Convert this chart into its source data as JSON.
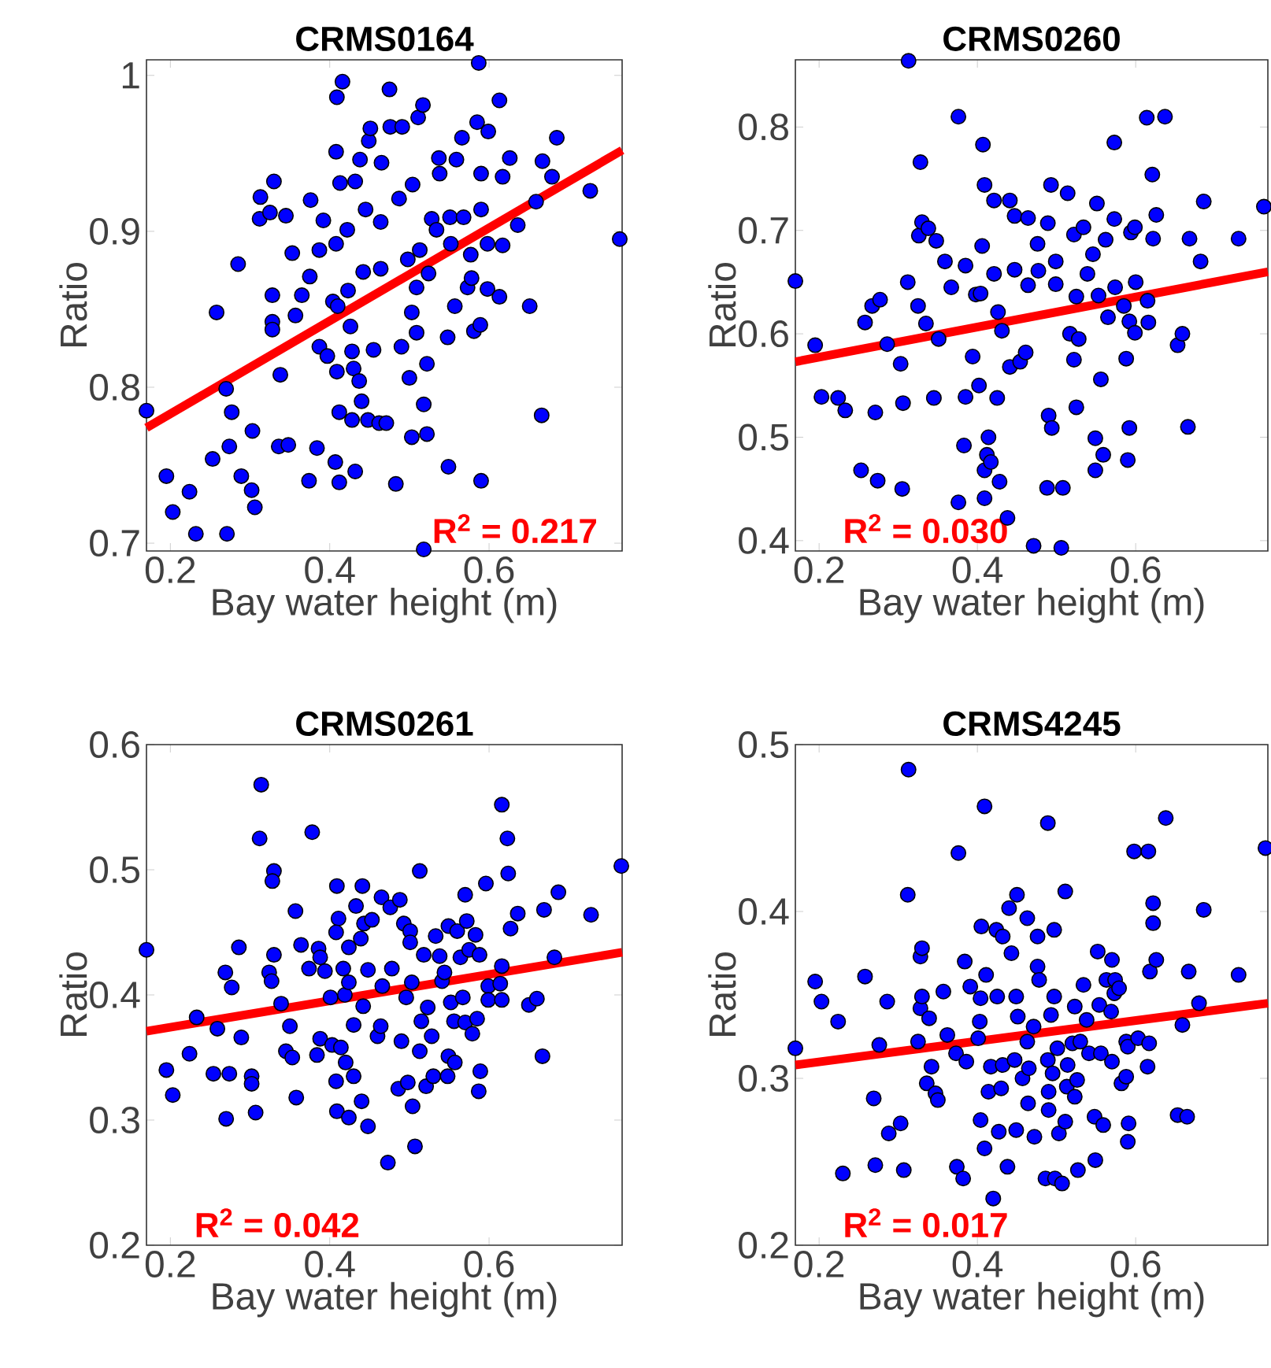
{
  "chart_data": [
    {
      "type": "scatter",
      "title": "CRMS0164",
      "xlabel": "Bay water height (m)",
      "ylabel": "Ratio",
      "xlim": [
        0.17,
        0.767
      ],
      "ylim": [
        0.695,
        1.01
      ],
      "xticks": [
        0.2,
        0.4,
        0.6
      ],
      "yticks": [
        0.7,
        0.8,
        0.9,
        1
      ],
      "annotations": [
        "R$^{2}$ = 0.217"
      ],
      "series": [
        {
          "marker": "circle",
          "color": "#0000ff",
          "x": [
            0.17,
            0.195,
            0.203,
            0.224,
            0.232,
            0.253,
            0.258,
            0.271,
            0.27,
            0.277,
            0.274,
            0.285,
            0.289,
            0.302,
            0.306,
            0.303,
            0.312,
            0.313,
            0.325,
            0.33,
            0.328,
            0.328,
            0.328,
            0.338,
            0.336,
            0.348,
            0.345,
            0.353,
            0.357,
            0.365,
            0.374,
            0.375,
            0.376,
            0.384,
            0.387,
            0.392,
            0.387,
            0.397,
            0.407,
            0.409,
            0.408,
            0.408,
            0.409,
            0.416,
            0.412,
            0.412,
            0.413,
            0.404,
            0.41,
            0.422,
            0.423,
            0.426,
            0.428,
            0.432,
            0.43,
            0.437,
            0.438,
            0.44,
            0.428,
            0.432,
            0.445,
            0.442,
            0.449,
            0.451,
            0.448,
            0.455,
            0.462,
            0.464,
            0.465,
            0.464,
            0.471,
            0.475,
            0.476,
            0.483,
            0.487,
            0.491,
            0.49,
            0.498,
            0.5,
            0.503,
            0.504,
            0.503,
            0.509,
            0.509,
            0.511,
            0.517,
            0.518,
            0.522,
            0.522,
            0.518,
            0.513,
            0.524,
            0.528,
            0.534,
            0.538,
            0.537,
            0.548,
            0.549,
            0.551,
            0.552,
            0.557,
            0.559,
            0.566,
            0.568,
            0.573,
            0.577,
            0.578,
            0.581,
            0.589,
            0.585,
            0.59,
            0.59,
            0.59,
            0.587,
            0.599,
            0.598,
            0.598,
            0.613,
            0.617,
            0.617,
            0.613,
            0.626,
            0.636,
            0.651,
            0.666,
            0.659,
            0.667,
            0.679,
            0.685,
            0.727,
            0.764
          ],
          "values": [
            0.785,
            0.743,
            0.72,
            0.733,
            0.706,
            0.754,
            0.848,
            0.706,
            0.799,
            0.784,
            0.762,
            0.879,
            0.743,
            0.734,
            0.723,
            0.772,
            0.908,
            0.922,
            0.912,
            0.932,
            0.859,
            0.842,
            0.837,
            0.808,
            0.762,
            0.763,
            0.91,
            0.886,
            0.846,
            0.859,
            0.74,
            0.871,
            0.92,
            0.761,
            0.888,
            0.907,
            0.826,
            0.82,
            0.752,
            0.81,
            0.892,
            0.951,
            0.986,
            0.996,
            0.784,
            0.739,
            0.931,
            0.855,
            0.852,
            0.901,
            0.862,
            0.839,
            0.823,
            0.932,
            0.812,
            0.804,
            0.946,
            0.791,
            0.779,
            0.746,
            0.914,
            0.874,
            0.958,
            0.966,
            0.779,
            0.824,
            0.777,
            0.906,
            0.944,
            0.876,
            0.777,
            0.991,
            0.967,
            0.738,
            0.921,
            0.967,
            0.826,
            0.882,
            0.806,
            0.768,
            0.93,
            0.848,
            0.864,
            0.835,
            0.973,
            0.981,
            0.789,
            0.77,
            0.815,
            0.696,
            0.888,
            0.873,
            0.908,
            0.901,
            0.937,
            0.947,
            0.832,
            0.749,
            0.909,
            0.892,
            0.852,
            0.946,
            0.96,
            0.909,
            0.864,
            0.885,
            0.87,
            0.836,
            0.84,
            0.97,
            0.937,
            0.914,
            0.74,
            1.008,
            0.964,
            0.892,
            0.863,
            0.984,
            0.935,
            0.891,
            0.858,
            0.947,
            0.904,
            0.852,
            0.782,
            0.919,
            0.945,
            0.935,
            0.96,
            0.926,
            0.895
          ]
        },
        {
          "type": "line",
          "line_style": "solid",
          "color": "#ff0000",
          "x": [
            0.17,
            0.767
          ],
          "values": [
            0.774,
            0.952
          ]
        }
      ]
    },
    {
      "type": "scatter",
      "title": "CRMS0260",
      "xlabel": "Bay water height (m)",
      "ylabel": "Ratio",
      "xlim": [
        0.17,
        0.767
      ],
      "ylim": [
        0.39,
        0.865
      ],
      "xticks": [
        0.2,
        0.4,
        0.6
      ],
      "yticks": [
        0.4,
        0.5,
        0.6,
        0.7,
        0.8
      ],
      "annotations": [
        "R$^{2}$ = 0.030"
      ],
      "series": [
        {
          "marker": "circle",
          "color": "#0000ff",
          "x": [
            0.17,
            0.195,
            0.203,
            0.224,
            0.233,
            0.258,
            0.267,
            0.277,
            0.253,
            0.274,
            0.271,
            0.286,
            0.303,
            0.305,
            0.306,
            0.312,
            0.313,
            0.325,
            0.328,
            0.326,
            0.33,
            0.335,
            0.338,
            0.345,
            0.348,
            0.351,
            0.359,
            0.367,
            0.376,
            0.376,
            0.383,
            0.385,
            0.385,
            0.394,
            0.398,
            0.404,
            0.406,
            0.407,
            0.409,
            0.402,
            0.409,
            0.409,
            0.412,
            0.414,
            0.417,
            0.421,
            0.426,
            0.428,
            0.421,
            0.425,
            0.431,
            0.438,
            0.441,
            0.441,
            0.447,
            0.447,
            0.454,
            0.461,
            0.464,
            0.464,
            0.471,
            0.476,
            0.477,
            0.493,
            0.489,
            0.49,
            0.488,
            0.499,
            0.499,
            0.494,
            0.506,
            0.508,
            0.514,
            0.517,
            0.522,
            0.525,
            0.528,
            0.525,
            0.522,
            0.534,
            0.539,
            0.546,
            0.551,
            0.549,
            0.549,
            0.559,
            0.556,
            0.553,
            0.562,
            0.565,
            0.573,
            0.573,
            0.574,
            0.585,
            0.588,
            0.59,
            0.592,
            0.592,
            0.594,
            0.599,
            0.599,
            0.6,
            0.615,
            0.616,
            0.614,
            0.621,
            0.622,
            0.626,
            0.637,
            0.653,
            0.659,
            0.666,
            0.668,
            0.682,
            0.686,
            0.73,
            0.762
          ],
          "values": [
            0.651,
            0.589,
            0.539,
            0.538,
            0.526,
            0.611,
            0.627,
            0.633,
            0.468,
            0.458,
            0.524,
            0.59,
            0.571,
            0.45,
            0.533,
            0.65,
            0.864,
            0.627,
            0.766,
            0.695,
            0.708,
            0.61,
            0.702,
            0.538,
            0.69,
            0.595,
            0.67,
            0.645,
            0.81,
            0.437,
            0.492,
            0.539,
            0.666,
            0.578,
            0.638,
            0.639,
            0.685,
            0.783,
            0.744,
            0.55,
            0.441,
            0.468,
            0.483,
            0.5,
            0.476,
            0.658,
            0.621,
            0.457,
            0.729,
            0.538,
            0.603,
            0.422,
            0.729,
            0.568,
            0.714,
            0.662,
            0.573,
            0.582,
            0.712,
            0.647,
            0.395,
            0.687,
            0.661,
            0.744,
            0.707,
            0.521,
            0.451,
            0.67,
            0.648,
            0.509,
            0.393,
            0.451,
            0.736,
            0.6,
            0.575,
            0.529,
            0.595,
            0.636,
            0.696,
            0.703,
            0.658,
            0.677,
            0.726,
            0.499,
            0.468,
            0.483,
            0.556,
            0.637,
            0.691,
            0.616,
            0.711,
            0.785,
            0.645,
            0.627,
            0.576,
            0.478,
            0.509,
            0.612,
            0.698,
            0.703,
            0.601,
            0.65,
            0.632,
            0.611,
            0.809,
            0.754,
            0.692,
            0.715,
            0.81,
            0.589,
            0.6,
            0.51,
            0.692,
            0.67,
            0.728,
            0.692,
            0.723
          ]
        },
        {
          "type": "line",
          "line_style": "solid",
          "color": "#ff0000",
          "x": [
            0.17,
            0.767
          ],
          "values": [
            0.573,
            0.66
          ]
        }
      ]
    },
    {
      "type": "scatter",
      "title": "CRMS0261",
      "xlabel": "Bay water height (m)",
      "ylabel": "Ratio",
      "xlim": [
        0.17,
        0.767
      ],
      "ylim": [
        0.2,
        0.6
      ],
      "xticks": [
        0.2,
        0.4,
        0.6
      ],
      "yticks": [
        0.2,
        0.3,
        0.4,
        0.5,
        0.6
      ],
      "annotations": [
        "R$^{2}$ = 0.042"
      ],
      "series": [
        {
          "marker": "circle",
          "color": "#0000ff",
          "x": [
            0.17,
            0.195,
            0.203,
            0.224,
            0.233,
            0.254,
            0.259,
            0.269,
            0.277,
            0.274,
            0.27,
            0.286,
            0.289,
            0.302,
            0.302,
            0.307,
            0.314,
            0.312,
            0.324,
            0.327,
            0.33,
            0.33,
            0.328,
            0.339,
            0.345,
            0.35,
            0.353,
            0.357,
            0.358,
            0.364,
            0.374,
            0.378,
            0.386,
            0.388,
            0.388,
            0.384,
            0.394,
            0.401,
            0.403,
            0.408,
            0.409,
            0.411,
            0.408,
            0.409,
            0.414,
            0.417,
            0.419,
            0.42,
            0.424,
            0.424,
            0.424,
            0.43,
            0.43,
            0.433,
            0.441,
            0.443,
            0.439,
            0.442,
            0.44,
            0.448,
            0.453,
            0.448,
            0.46,
            0.465,
            0.466,
            0.464,
            0.473,
            0.476,
            0.478,
            0.486,
            0.488,
            0.49,
            0.493,
            0.496,
            0.498,
            0.501,
            0.501,
            0.503,
            0.504,
            0.507,
            0.513,
            0.513,
            0.515,
            0.518,
            0.523,
            0.521,
            0.528,
            0.53,
            0.533,
            0.538,
            0.541,
            0.544,
            0.549,
            0.548,
            0.549,
            0.552,
            0.556,
            0.557,
            0.56,
            0.564,
            0.567,
            0.57,
            0.572,
            0.57,
            0.575,
            0.579,
            0.583,
            0.585,
            0.588,
            0.589,
            0.587,
            0.596,
            0.599,
            0.599,
            0.614,
            0.616,
            0.616,
            0.616,
            0.623,
            0.624,
            0.627,
            0.636,
            0.65,
            0.66,
            0.667,
            0.669,
            0.682,
            0.687,
            0.728,
            0.766
          ],
          "values": [
            0.436,
            0.34,
            0.32,
            0.353,
            0.382,
            0.337,
            0.373,
            0.418,
            0.406,
            0.337,
            0.301,
            0.438,
            0.366,
            0.335,
            0.329,
            0.306,
            0.568,
            0.525,
            0.418,
            0.411,
            0.432,
            0.499,
            0.491,
            0.393,
            0.355,
            0.375,
            0.35,
            0.467,
            0.318,
            0.44,
            0.421,
            0.53,
            0.437,
            0.43,
            0.365,
            0.352,
            0.419,
            0.398,
            0.36,
            0.331,
            0.487,
            0.461,
            0.45,
            0.307,
            0.358,
            0.421,
            0.4,
            0.346,
            0.438,
            0.302,
            0.41,
            0.376,
            0.335,
            0.471,
            0.487,
            0.457,
            0.445,
            0.391,
            0.315,
            0.295,
            0.46,
            0.42,
            0.367,
            0.478,
            0.407,
            0.375,
            0.266,
            0.47,
            0.421,
            0.325,
            0.476,
            0.363,
            0.457,
            0.398,
            0.33,
            0.451,
            0.442,
            0.41,
            0.311,
            0.279,
            0.499,
            0.355,
            0.379,
            0.432,
            0.39,
            0.327,
            0.367,
            0.335,
            0.447,
            0.431,
            0.411,
            0.418,
            0.455,
            0.335,
            0.351,
            0.394,
            0.379,
            0.346,
            0.451,
            0.43,
            0.398,
            0.48,
            0.459,
            0.378,
            0.436,
            0.369,
            0.448,
            0.381,
            0.432,
            0.339,
            0.323,
            0.489,
            0.407,
            0.396,
            0.409,
            0.552,
            0.423,
            0.396,
            0.525,
            0.497,
            0.453,
            0.465,
            0.392,
            0.397,
            0.351,
            0.468,
            0.43,
            0.482,
            0.464,
            0.503
          ]
        },
        {
          "type": "line",
          "line_style": "solid",
          "color": "#ff0000",
          "x": [
            0.17,
            0.767
          ],
          "values": [
            0.371,
            0.434
          ]
        }
      ]
    },
    {
      "type": "scatter",
      "title": "CRMS4245",
      "xlabel": "Bay water height (m)",
      "ylabel": "Ratio",
      "xlim": [
        0.17,
        0.767
      ],
      "ylim": [
        0.2,
        0.5
      ],
      "xticks": [
        0.2,
        0.4,
        0.6
      ],
      "yticks": [
        0.2,
        0.3,
        0.4,
        0.5
      ],
      "annotations": [
        "R$^{2}$ = 0.017"
      ],
      "series": [
        {
          "marker": "circle",
          "color": "#0000ff",
          "x": [
            0.17,
            0.195,
            0.203,
            0.224,
            0.23,
            0.258,
            0.269,
            0.276,
            0.286,
            0.288,
            0.271,
            0.303,
            0.307,
            0.312,
            0.313,
            0.325,
            0.328,
            0.328,
            0.33,
            0.33,
            0.339,
            0.336,
            0.342,
            0.347,
            0.35,
            0.357,
            0.362,
            0.373,
            0.376,
            0.374,
            0.382,
            0.384,
            0.386,
            0.391,
            0.401,
            0.403,
            0.404,
            0.404,
            0.405,
            0.409,
            0.409,
            0.411,
            0.414,
            0.417,
            0.42,
            0.424,
            0.425,
            0.427,
            0.43,
            0.432,
            0.432,
            0.438,
            0.44,
            0.443,
            0.447,
            0.45,
            0.449,
            0.451,
            0.449,
            0.457,
            0.463,
            0.463,
            0.464,
            0.465,
            0.471,
            0.472,
            0.476,
            0.476,
            0.478,
            0.486,
            0.489,
            0.489,
            0.49,
            0.49,
            0.493,
            0.495,
            0.497,
            0.497,
            0.498,
            0.501,
            0.503,
            0.507,
            0.511,
            0.511,
            0.513,
            0.514,
            0.52,
            0.523,
            0.523,
            0.526,
            0.527,
            0.53,
            0.534,
            0.538,
            0.541,
            0.549,
            0.548,
            0.552,
            0.554,
            0.556,
            0.559,
            0.563,
            0.569,
            0.57,
            0.57,
            0.573,
            0.574,
            0.579,
            0.582,
            0.588,
            0.588,
            0.59,
            0.591,
            0.59,
            0.598,
            0.603,
            0.616,
            0.615,
            0.617,
            0.618,
            0.622,
            0.622,
            0.626,
            0.638,
            0.653,
            0.659,
            0.665,
            0.667,
            0.68,
            0.686,
            0.73,
            0.764
          ],
          "values": [
            0.318,
            0.358,
            0.346,
            0.334,
            0.243,
            0.361,
            0.288,
            0.32,
            0.346,
            0.267,
            0.248,
            0.273,
            0.245,
            0.41,
            0.485,
            0.322,
            0.342,
            0.373,
            0.378,
            0.349,
            0.336,
            0.297,
            0.307,
            0.291,
            0.287,
            0.352,
            0.326,
            0.315,
            0.435,
            0.247,
            0.24,
            0.37,
            0.31,
            0.355,
            0.324,
            0.334,
            0.275,
            0.348,
            0.391,
            0.463,
            0.258,
            0.362,
            0.292,
            0.307,
            0.228,
            0.389,
            0.349,
            0.268,
            0.294,
            0.308,
            0.385,
            0.247,
            0.402,
            0.375,
            0.311,
            0.41,
            0.349,
            0.337,
            0.269,
            0.3,
            0.396,
            0.322,
            0.285,
            0.306,
            0.331,
            0.265,
            0.385,
            0.367,
            0.359,
            0.24,
            0.453,
            0.311,
            0.292,
            0.281,
            0.338,
            0.303,
            0.389,
            0.349,
            0.24,
            0.318,
            0.267,
            0.237,
            0.412,
            0.274,
            0.295,
            0.308,
            0.321,
            0.343,
            0.289,
            0.299,
            0.245,
            0.322,
            0.356,
            0.335,
            0.315,
            0.251,
            0.277,
            0.376,
            0.344,
            0.315,
            0.272,
            0.359,
            0.34,
            0.31,
            0.371,
            0.351,
            0.359,
            0.354,
            0.297,
            0.301,
            0.322,
            0.319,
            0.273,
            0.262,
            0.436,
            0.324,
            0.436,
            0.307,
            0.321,
            0.364,
            0.405,
            0.393,
            0.371,
            0.456,
            0.278,
            0.332,
            0.277,
            0.364,
            0.345,
            0.401,
            0.362,
            0.438
          ]
        },
        {
          "type": "line",
          "line_style": "solid",
          "color": "#ff0000",
          "x": [
            0.17,
            0.767
          ],
          "values": [
            0.308,
            0.345
          ]
        }
      ]
    }
  ]
}
